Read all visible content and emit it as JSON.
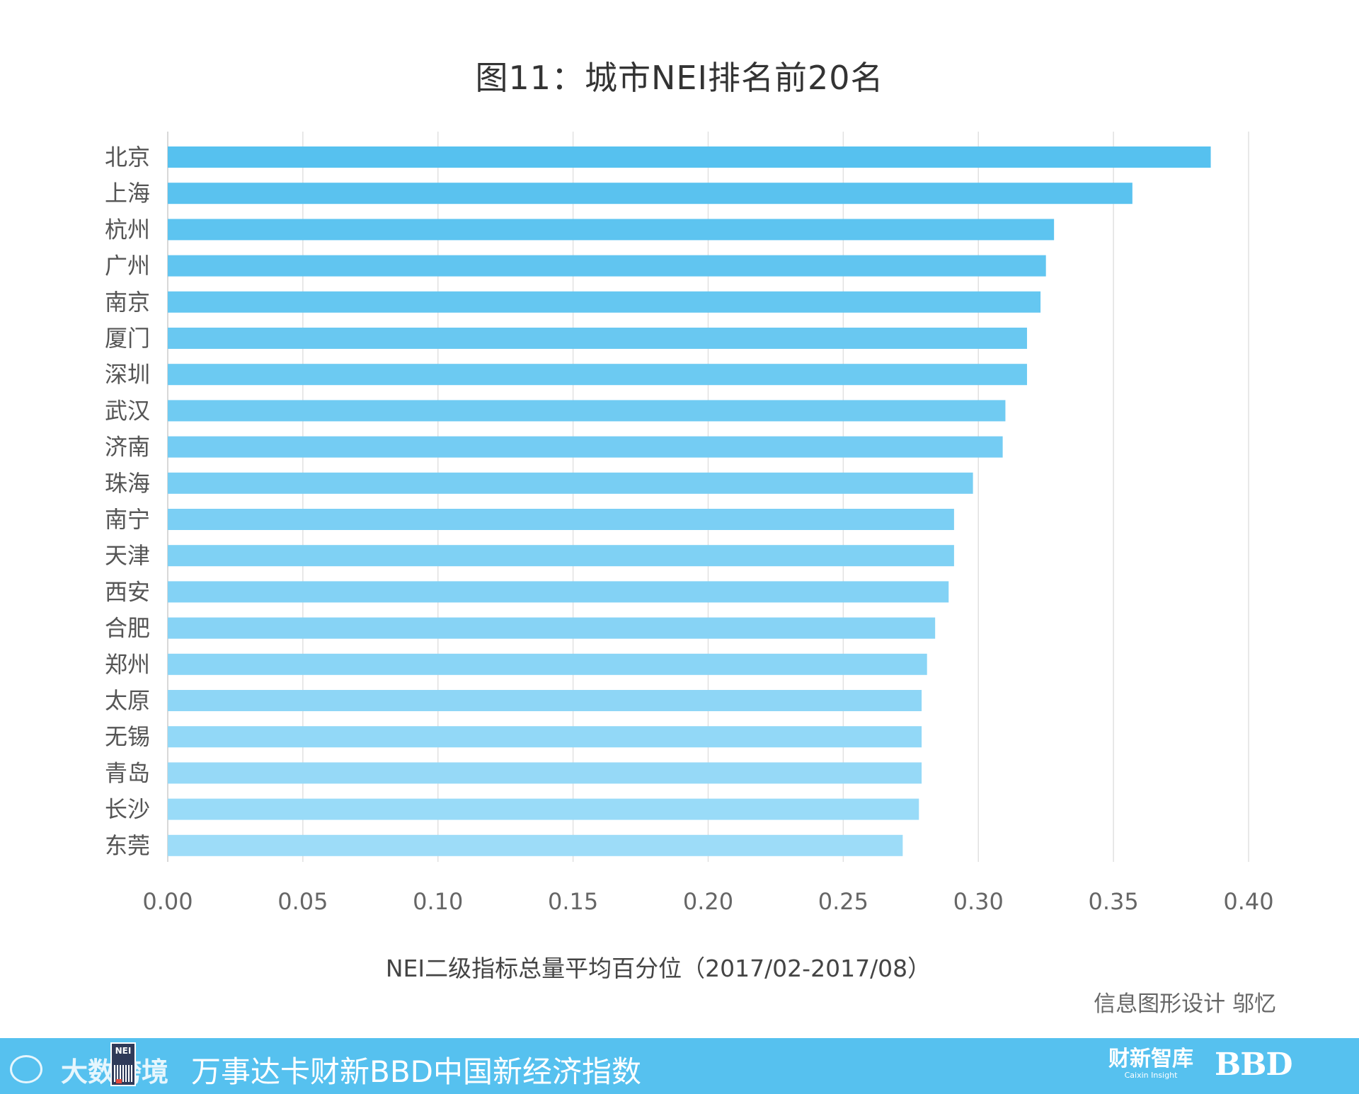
{
  "chart_data": {
    "type": "bar",
    "orientation": "horizontal",
    "title": "图11：城市NEI排名前20名",
    "xlabel": "NEI二级指标总量平均百分位（2017/02-2017/08）",
    "ylabel": "",
    "xlim": [
      0,
      0.4
    ],
    "xticks": [
      "0.00",
      "0.05",
      "0.10",
      "0.15",
      "0.20",
      "0.25",
      "0.30",
      "0.35",
      "0.40"
    ],
    "grid": true,
    "categories": [
      "北京",
      "上海",
      "杭州",
      "广州",
      "南京",
      "厦门",
      "深圳",
      "武汉",
      "济南",
      "珠海",
      "南宁",
      "天津",
      "西安",
      "合肥",
      "郑州",
      "太原",
      "无锡",
      "青岛",
      "长沙",
      "东莞"
    ],
    "values": [
      0.386,
      0.357,
      0.328,
      0.325,
      0.323,
      0.318,
      0.318,
      0.31,
      0.309,
      0.298,
      0.291,
      0.291,
      0.289,
      0.284,
      0.281,
      0.279,
      0.279,
      0.279,
      0.278,
      0.272
    ],
    "colors": {
      "bar_start": "#56c1ef",
      "bar_end": "#9ddcf8",
      "grid": "#e1e1e1",
      "axis": "#cccccc"
    }
  },
  "credit": "信息图形设计 邬忆",
  "footer": {
    "title": "万事达卡财新BBD中国新经济指数",
    "watermark": "大数跨境",
    "nei_logo": "NEI",
    "caixin_cn": "财新智库",
    "caixin_en": "Caixin Insight",
    "bbd": "BBD",
    "background": "#56c1ef"
  }
}
